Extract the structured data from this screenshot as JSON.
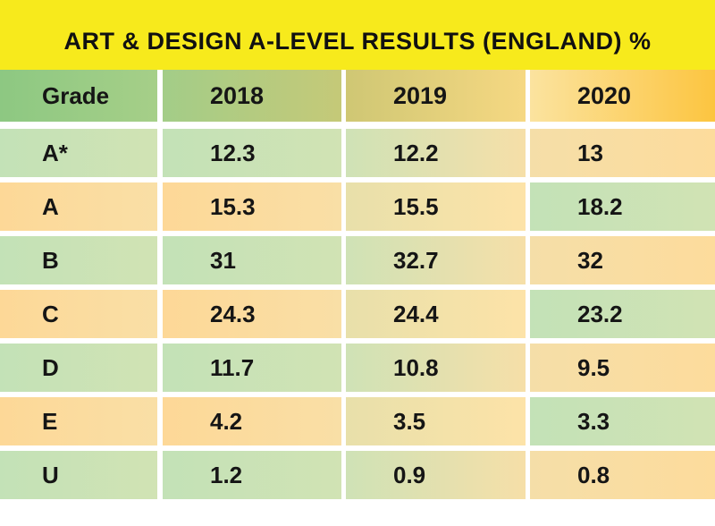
{
  "chart_data": {
    "type": "table",
    "title": "ART & DESIGN A-LEVEL RESULTS (ENGLAND) %",
    "columns": [
      "Grade",
      "2018",
      "2019",
      "2020"
    ],
    "rows": [
      {
        "grade": "A*",
        "values": [
          "12.3",
          "12.2",
          "13"
        ]
      },
      {
        "grade": "A",
        "values": [
          "15.3",
          "15.5",
          "18.2"
        ]
      },
      {
        "grade": "B",
        "values": [
          "31",
          "32.7",
          "32"
        ]
      },
      {
        "grade": "C",
        "values": [
          "24.3",
          "24.4",
          "23.2"
        ]
      },
      {
        "grade": "D",
        "values": [
          "11.7",
          "10.8",
          "9.5"
        ]
      },
      {
        "grade": "E",
        "values": [
          "4.2",
          "3.5",
          "3.3"
        ]
      },
      {
        "grade": "U",
        "values": [
          "1.2",
          "0.9",
          "0.8"
        ]
      }
    ]
  },
  "colors": {
    "title_bar": "#f7ea1c",
    "green": "#c3e2b7",
    "orange": "#fdd897"
  }
}
